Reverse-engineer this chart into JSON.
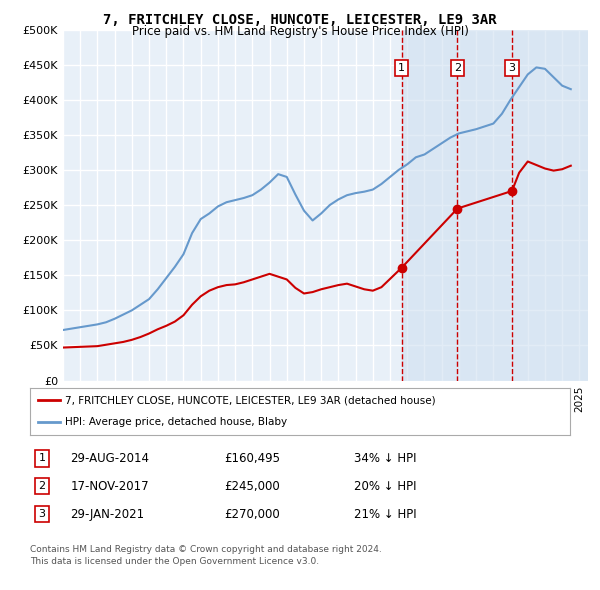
{
  "title": "7, FRITCHLEY CLOSE, HUNCOTE, LEICESTER, LE9 3AR",
  "subtitle": "Price paid vs. HM Land Registry's House Price Index (HPI)",
  "legend_label_red": "7, FRITCHLEY CLOSE, HUNCOTE, LEICESTER, LE9 3AR (detached house)",
  "legend_label_blue": "HPI: Average price, detached house, Blaby",
  "footnote1": "Contains HM Land Registry data © Crown copyright and database right 2024.",
  "footnote2": "This data is licensed under the Open Government Licence v3.0.",
  "transactions": [
    {
      "num": 1,
      "date": "29-AUG-2014",
      "price": 160495,
      "pct": "34%",
      "dir": "↓"
    },
    {
      "num": 2,
      "date": "17-NOV-2017",
      "price": 245000,
      "pct": "20%",
      "dir": "↓"
    },
    {
      "num": 3,
      "date": "29-JAN-2021",
      "price": 270000,
      "pct": "21%",
      "dir": "↓"
    }
  ],
  "ylim": [
    0,
    500000
  ],
  "yticks": [
    0,
    50000,
    100000,
    150000,
    200000,
    250000,
    300000,
    350000,
    400000,
    450000,
    500000
  ],
  "background_color": "#ffffff",
  "plot_bg_color": "#e8f0f8",
  "grid_color": "#ffffff",
  "red_color": "#cc0000",
  "blue_color": "#6699cc",
  "dashed_vline_color": "#cc0000",
  "vline_shaded_color": "#d0e0f0",
  "hpi_years": [
    1995.0,
    1995.5,
    1996.0,
    1996.5,
    1997.0,
    1997.5,
    1998.0,
    1998.5,
    1999.0,
    1999.5,
    2000.0,
    2000.5,
    2001.0,
    2001.5,
    2002.0,
    2002.5,
    2003.0,
    2003.5,
    2004.0,
    2004.5,
    2005.0,
    2005.5,
    2006.0,
    2006.5,
    2007.0,
    2007.5,
    2008.0,
    2008.5,
    2009.0,
    2009.5,
    2010.0,
    2010.5,
    2011.0,
    2011.5,
    2012.0,
    2012.5,
    2013.0,
    2013.5,
    2014.0,
    2014.5,
    2015.0,
    2015.5,
    2016.0,
    2016.5,
    2017.0,
    2017.5,
    2018.0,
    2018.5,
    2019.0,
    2019.5,
    2020.0,
    2020.5,
    2021.0,
    2021.5,
    2022.0,
    2022.5,
    2023.0,
    2023.5,
    2024.0,
    2024.5
  ],
  "hpi_values": [
    72000,
    74000,
    76000,
    78000,
    80000,
    83000,
    88000,
    94000,
    100000,
    108000,
    116000,
    130000,
    146000,
    162000,
    180000,
    210000,
    230000,
    238000,
    248000,
    254000,
    257000,
    260000,
    264000,
    272000,
    282000,
    294000,
    290000,
    265000,
    242000,
    228000,
    238000,
    250000,
    258000,
    264000,
    267000,
    269000,
    272000,
    280000,
    290000,
    300000,
    308000,
    318000,
    322000,
    330000,
    338000,
    346000,
    352000,
    355000,
    358000,
    362000,
    366000,
    380000,
    400000,
    418000,
    436000,
    446000,
    444000,
    432000,
    420000,
    415000
  ],
  "red_years": [
    1995.0,
    1995.5,
    1996.0,
    1996.5,
    1997.0,
    1997.5,
    1998.0,
    1998.5,
    1999.0,
    1999.5,
    2000.0,
    2000.5,
    2001.0,
    2001.5,
    2002.0,
    2002.5,
    2003.0,
    2003.5,
    2004.0,
    2004.5,
    2005.0,
    2005.5,
    2006.0,
    2006.5,
    2007.0,
    2007.5,
    2008.0,
    2008.5,
    2009.0,
    2009.5,
    2010.0,
    2010.5,
    2011.0,
    2011.5,
    2012.0,
    2012.5,
    2013.0,
    2013.5,
    2014.667,
    2017.917,
    2021.083,
    2021.5,
    2022.0,
    2022.5,
    2023.0,
    2023.5,
    2024.0,
    2024.5
  ],
  "red_values": [
    47000,
    47500,
    48000,
    48500,
    49000,
    51000,
    53000,
    55000,
    58000,
    62000,
    67000,
    73000,
    78000,
    84000,
    93000,
    108000,
    120000,
    128000,
    133000,
    136000,
    137000,
    140000,
    144000,
    148000,
    152000,
    148000,
    144000,
    132000,
    124000,
    126000,
    130000,
    133000,
    136000,
    138000,
    134000,
    130000,
    128000,
    133000,
    160495,
    245000,
    270000,
    296000,
    312000,
    307000,
    302000,
    299000,
    301000,
    306000
  ],
  "transaction_years": [
    2014.667,
    2017.917,
    2021.083
  ],
  "transaction_prices": [
    160495,
    245000,
    270000
  ],
  "xlim": [
    1995,
    2025.5
  ],
  "xticks": [
    1995,
    1996,
    1997,
    1998,
    1999,
    2000,
    2001,
    2002,
    2003,
    2004,
    2005,
    2006,
    2007,
    2008,
    2009,
    2010,
    2011,
    2012,
    2013,
    2014,
    2015,
    2016,
    2017,
    2018,
    2019,
    2020,
    2021,
    2022,
    2023,
    2024,
    2025
  ]
}
